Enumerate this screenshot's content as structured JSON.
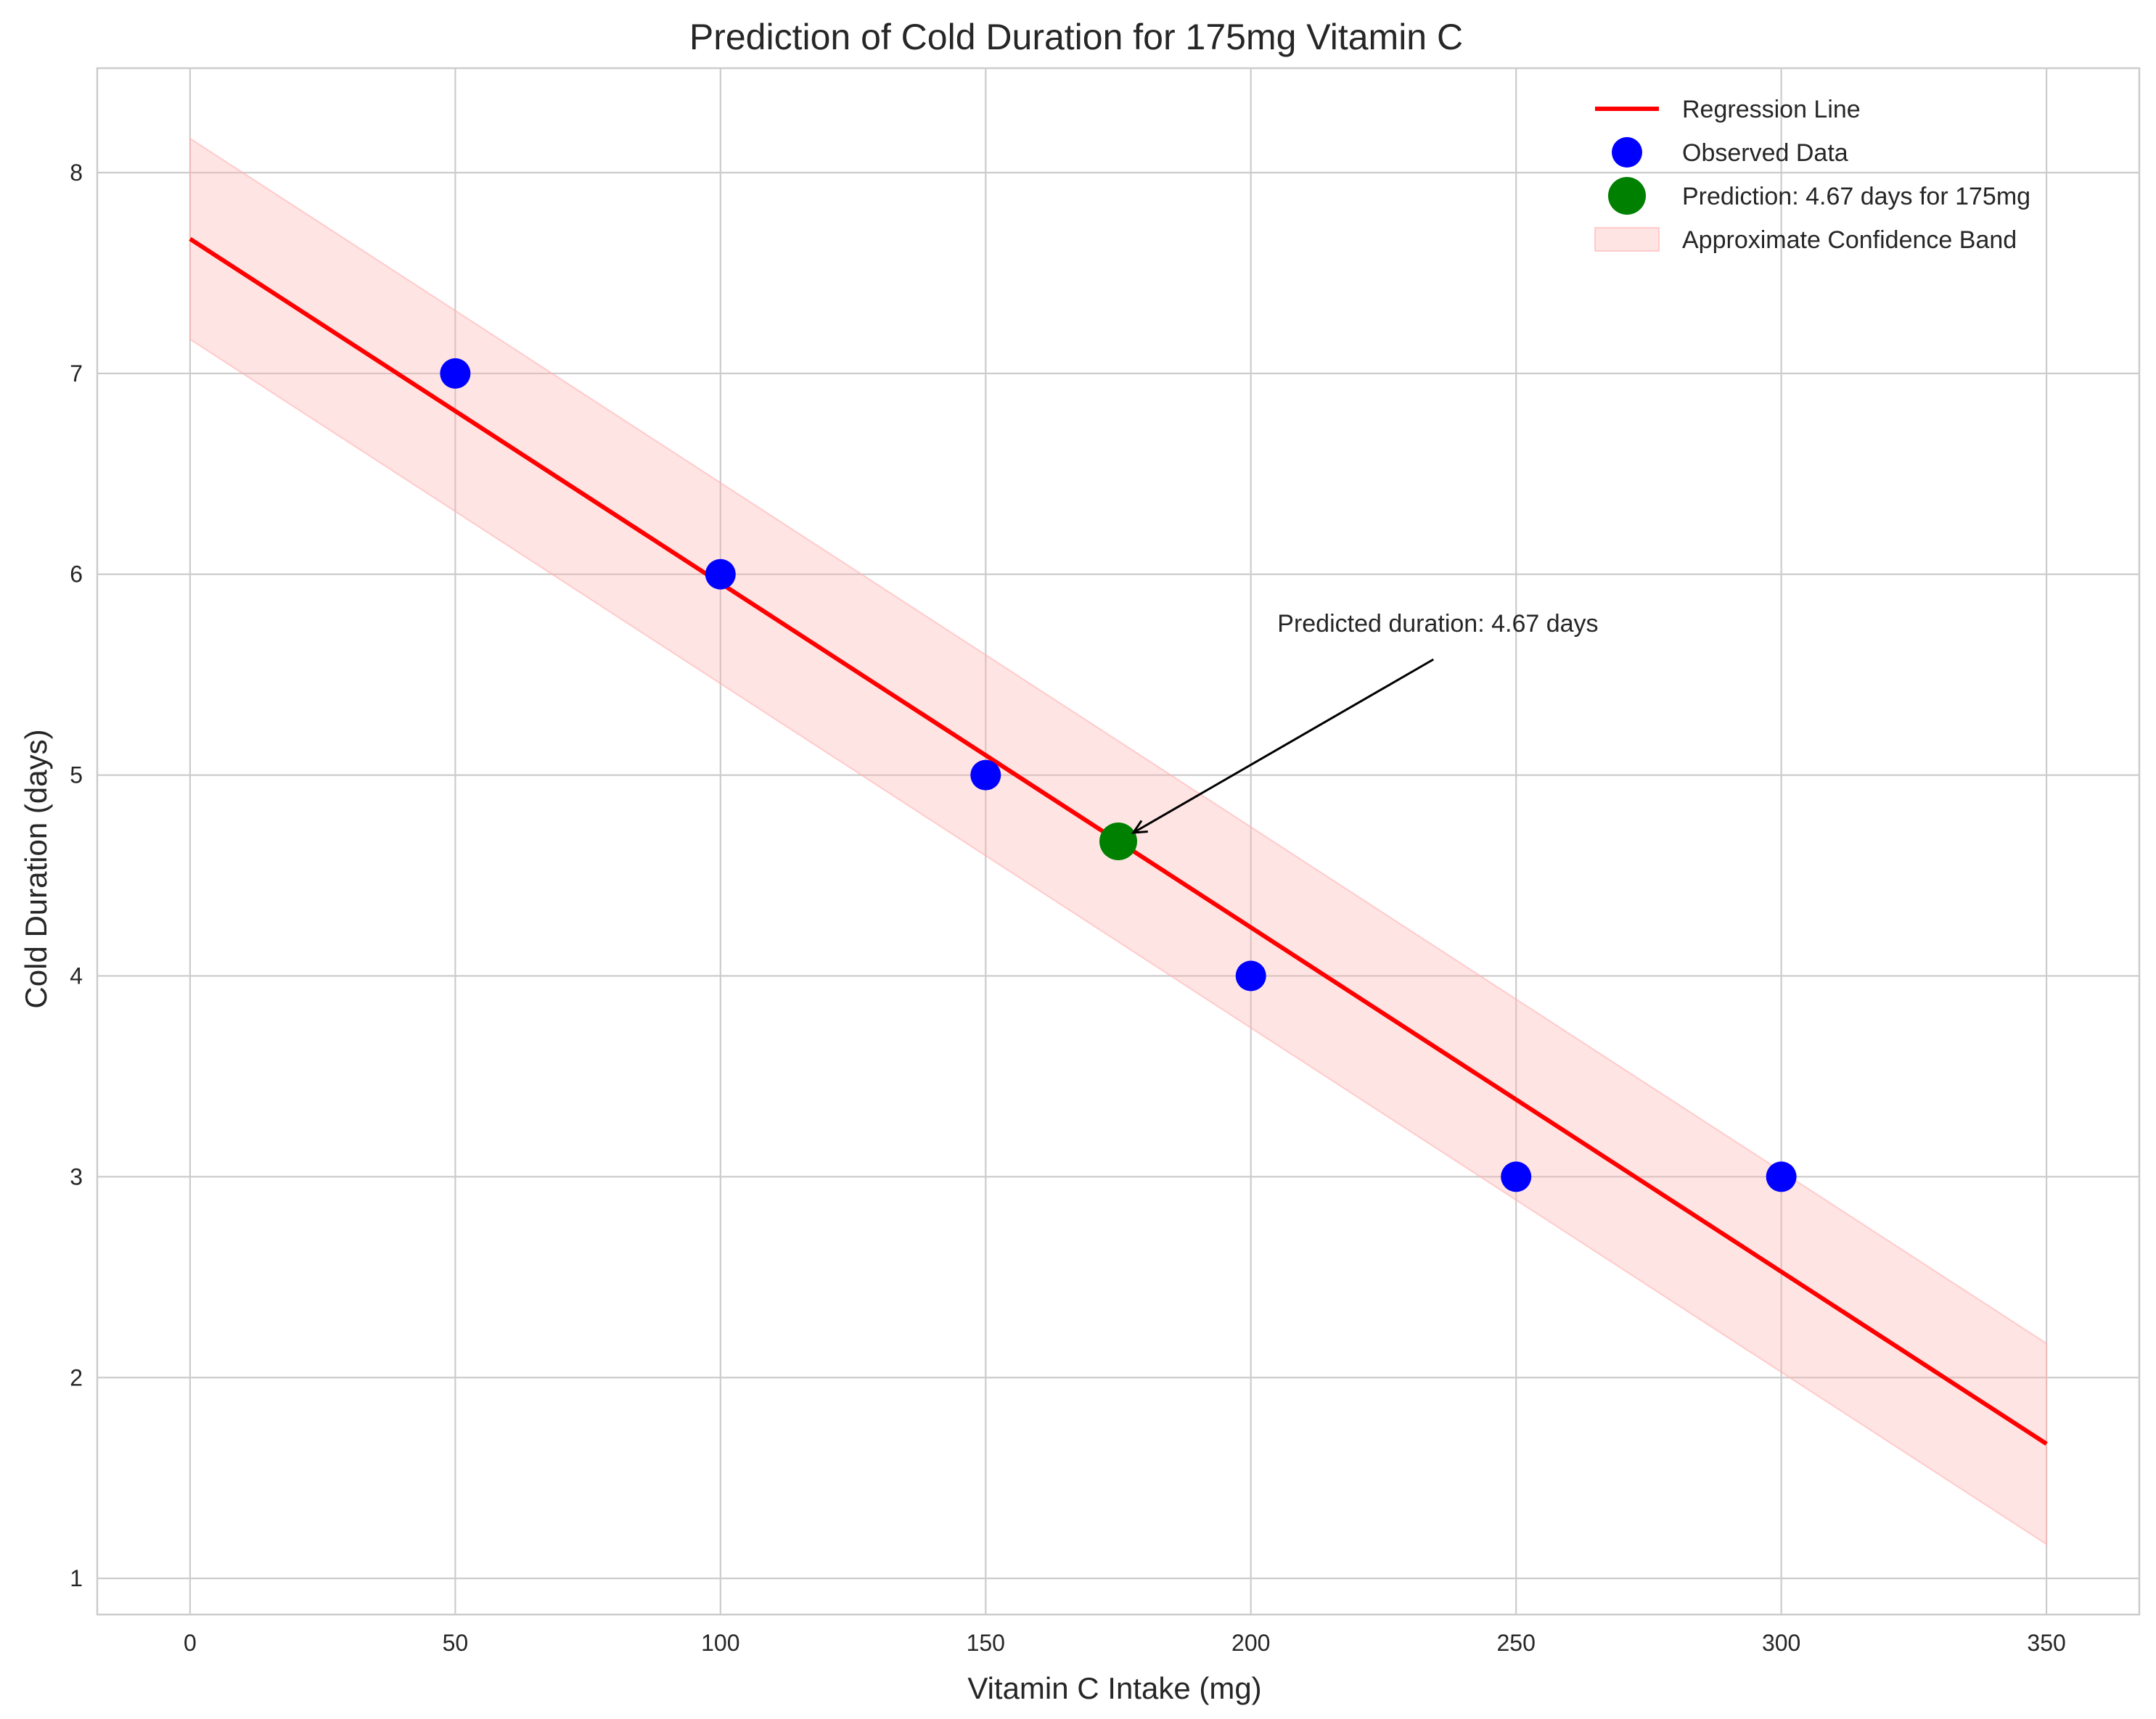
{
  "chart_data": {
    "type": "scatter",
    "title": "Prediction of Cold Duration for 175mg Vitamin C",
    "xlabel": "Vitamin C Intake (mg)",
    "ylabel": "Cold Duration (days)",
    "xlim": [
      -17.5,
      367.5
    ],
    "ylim": [
      0.82,
      8.52
    ],
    "xticks": [
      0,
      50,
      100,
      150,
      200,
      250,
      300,
      350
    ],
    "yticks": [
      1,
      2,
      3,
      4,
      5,
      6,
      7,
      8
    ],
    "grid": true,
    "legend_position": "top-right",
    "colors": {
      "regression": "#ff0000",
      "observed": "#0000ff",
      "prediction": "#008000",
      "band": "#ffb3b3",
      "grid": "#cccccc",
      "axes": "#cccccc",
      "annotation": "#000000"
    },
    "series": [
      {
        "name": "Regression Line",
        "kind": "line",
        "x": [
          0,
          350
        ],
        "y": [
          7.67,
          1.67
        ]
      },
      {
        "name": "Observed Data",
        "kind": "scatter",
        "x": [
          50,
          100,
          150,
          200,
          250,
          300
        ],
        "y": [
          7,
          6,
          5,
          4,
          3,
          3
        ]
      },
      {
        "name": "Prediction: 4.67 days for 175mg",
        "kind": "scatter",
        "x": [
          175
        ],
        "y": [
          4.67
        ]
      },
      {
        "name": "Approximate Confidence Band",
        "kind": "band",
        "x": [
          0,
          350
        ],
        "y_lower": [
          7.17,
          1.17
        ],
        "y_upper": [
          8.17,
          2.17
        ]
      }
    ],
    "annotation": {
      "text": "Predicted duration: 4.67 days",
      "point": [
        175,
        4.67
      ],
      "text_position": [
        205,
        5.67
      ]
    }
  }
}
